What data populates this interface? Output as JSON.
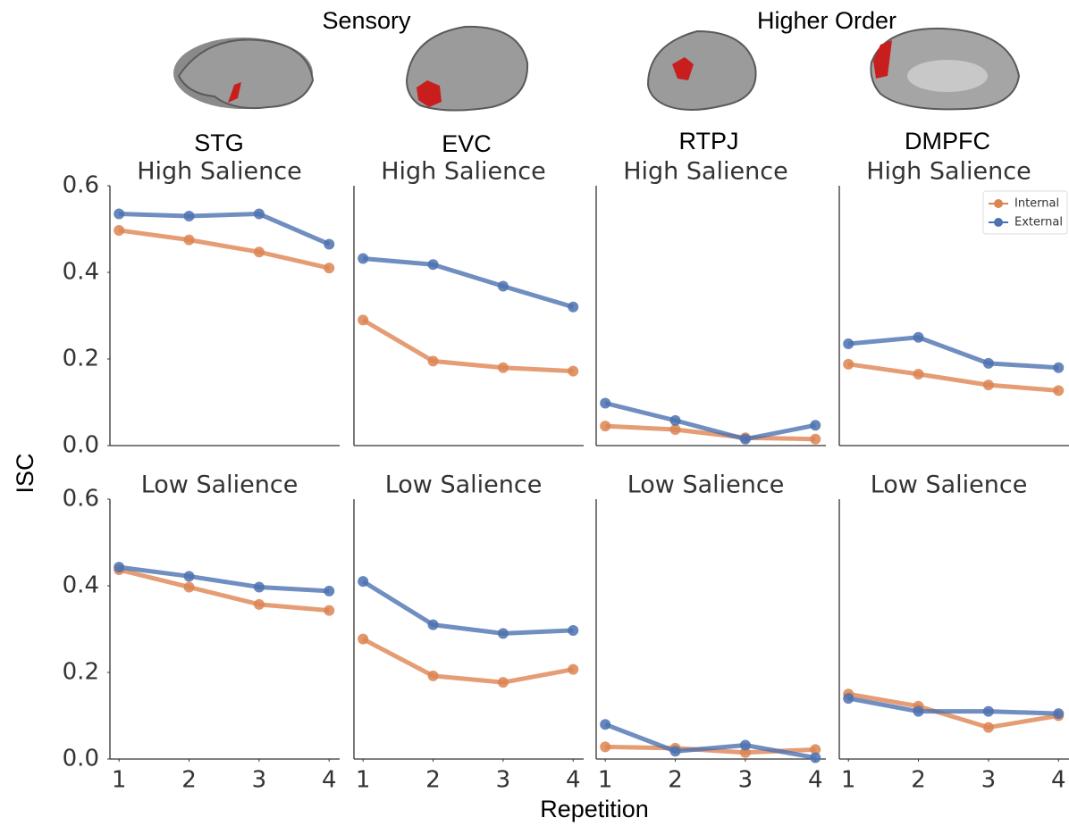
{
  "figure": {
    "groups": [
      "Sensory",
      "Higher Order"
    ],
    "regions": [
      "STG",
      "EVC",
      "RTPJ",
      "DMPFC"
    ],
    "xlabel": "Repetition",
    "ylabel": "ISC"
  },
  "chart_data": [
    {
      "type": "line",
      "title": "High Salience",
      "x": [
        1,
        2,
        3,
        4
      ],
      "xlim": [
        0.87,
        4.15
      ],
      "ylim": [
        0,
        0.6
      ],
      "yticks": [
        {
          "value": 0,
          "label": "0.0"
        },
        0.2,
        0.4,
        0.6
      ],
      "series": [
        {
          "name": "Internal",
          "color": "#dd8452",
          "values": [
            0.497,
            0.475,
            0.447,
            0.41
          ]
        },
        {
          "name": "External",
          "color": "#4c72b0",
          "values": [
            0.535,
            0.53,
            0.535,
            0.465
          ]
        }
      ]
    },
    {
      "type": "line",
      "title": "High Salience",
      "x": [
        1,
        2,
        3,
        4
      ],
      "xlim": [
        0.87,
        4.15
      ],
      "ylim": [
        0,
        0.6
      ],
      "series": [
        {
          "name": "Internal",
          "color": "#dd8452",
          "values": [
            0.29,
            0.195,
            0.18,
            0.172
          ]
        },
        {
          "name": "External",
          "color": "#4c72b0",
          "values": [
            0.432,
            0.418,
            0.368,
            0.32
          ]
        }
      ]
    },
    {
      "type": "line",
      "title": "High Salience",
      "x": [
        1,
        2,
        3,
        4
      ],
      "xlim": [
        0.87,
        4.15
      ],
      "ylim": [
        0,
        0.6
      ],
      "series": [
        {
          "name": "Internal",
          "color": "#dd8452",
          "values": [
            0.045,
            0.037,
            0.018,
            0.015
          ]
        },
        {
          "name": "External",
          "color": "#4c72b0",
          "values": [
            0.098,
            0.058,
            0.015,
            0.047
          ]
        }
      ]
    },
    {
      "type": "line",
      "title": "High Salience",
      "x": [
        1,
        2,
        3,
        4
      ],
      "xlim": [
        0.87,
        4.15
      ],
      "ylim": [
        0,
        0.6
      ],
      "legend": "upper right",
      "series": [
        {
          "name": "Internal",
          "color": "#dd8452",
          "values": [
            0.188,
            0.165,
            0.14,
            0.127
          ]
        },
        {
          "name": "External",
          "color": "#4c72b0",
          "values": [
            0.235,
            0.25,
            0.19,
            0.18
          ]
        }
      ]
    },
    {
      "type": "line",
      "title": "Low Salience",
      "x": [
        1,
        2,
        3,
        4
      ],
      "xlim": [
        0.87,
        4.15
      ],
      "ylim": [
        0,
        0.6
      ],
      "xticks": [
        1,
        2,
        3,
        4
      ],
      "yticks": [
        {
          "value": 0,
          "label": "0.0"
        },
        0.2,
        0.4,
        0.6
      ],
      "series": [
        {
          "name": "Internal",
          "color": "#dd8452",
          "values": [
            0.437,
            0.397,
            0.357,
            0.343
          ]
        },
        {
          "name": "External",
          "color": "#4c72b0",
          "values": [
            0.443,
            0.422,
            0.397,
            0.388
          ]
        }
      ]
    },
    {
      "type": "line",
      "title": "Low Salience",
      "x": [
        1,
        2,
        3,
        4
      ],
      "xlim": [
        0.87,
        4.15
      ],
      "ylim": [
        0,
        0.6
      ],
      "xticks": [
        1,
        2,
        3,
        4
      ],
      "series": [
        {
          "name": "Internal",
          "color": "#dd8452",
          "values": [
            0.277,
            0.192,
            0.177,
            0.207
          ]
        },
        {
          "name": "External",
          "color": "#4c72b0",
          "values": [
            0.41,
            0.31,
            0.29,
            0.297
          ]
        }
      ]
    },
    {
      "type": "line",
      "title": "Low Salience",
      "x": [
        1,
        2,
        3,
        4
      ],
      "xlim": [
        0.87,
        4.15
      ],
      "ylim": [
        0,
        0.6
      ],
      "xticks": [
        1,
        2,
        3,
        4
      ],
      "series": [
        {
          "name": "Internal",
          "color": "#dd8452",
          "values": [
            0.028,
            0.025,
            0.015,
            0.022
          ]
        },
        {
          "name": "External",
          "color": "#4c72b0",
          "values": [
            0.08,
            0.018,
            0.032,
            0.003
          ]
        }
      ]
    },
    {
      "type": "line",
      "title": "Low Salience",
      "x": [
        1,
        2,
        3,
        4
      ],
      "xlim": [
        0.87,
        4.15
      ],
      "ylim": [
        0,
        0.6
      ],
      "xticks": [
        1,
        2,
        3,
        4
      ],
      "series": [
        {
          "name": "Internal",
          "color": "#dd8452",
          "values": [
            0.15,
            0.122,
            0.073,
            0.1
          ]
        },
        {
          "name": "External",
          "color": "#4c72b0",
          "values": [
            0.14,
            0.11,
            0.11,
            0.105
          ]
        }
      ]
    }
  ]
}
